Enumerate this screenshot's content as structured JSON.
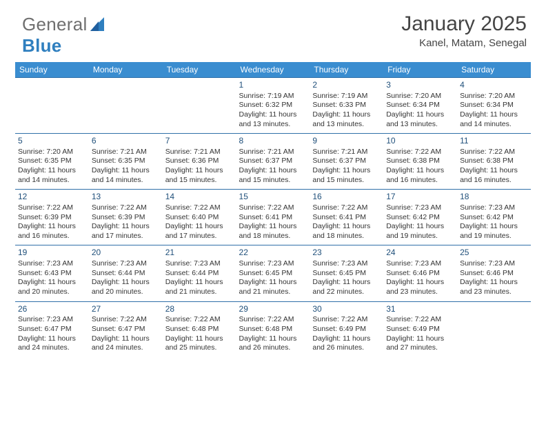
{
  "brand": {
    "word1": "General",
    "word2": "Blue"
  },
  "title": "January 2025",
  "location": "Kanel, Matam, Senegal",
  "colors": {
    "header_bg": "#3a8dd0",
    "header_text": "#ffffff",
    "row_border": "#2f6fa8",
    "daynum_color": "#1f4f7a",
    "body_text": "#333333",
    "logo_gray": "#6f6f6f",
    "logo_blue": "#2f7fbf"
  },
  "day_headers": [
    "Sunday",
    "Monday",
    "Tuesday",
    "Wednesday",
    "Thursday",
    "Friday",
    "Saturday"
  ],
  "weeks": [
    [
      {},
      {},
      {},
      {
        "n": "1",
        "sr": "7:19 AM",
        "ss": "6:32 PM",
        "d1": "Daylight: 11 hours",
        "d2": "and 13 minutes."
      },
      {
        "n": "2",
        "sr": "7:19 AM",
        "ss": "6:33 PM",
        "d1": "Daylight: 11 hours",
        "d2": "and 13 minutes."
      },
      {
        "n": "3",
        "sr": "7:20 AM",
        "ss": "6:34 PM",
        "d1": "Daylight: 11 hours",
        "d2": "and 13 minutes."
      },
      {
        "n": "4",
        "sr": "7:20 AM",
        "ss": "6:34 PM",
        "d1": "Daylight: 11 hours",
        "d2": "and 14 minutes."
      }
    ],
    [
      {
        "n": "5",
        "sr": "7:20 AM",
        "ss": "6:35 PM",
        "d1": "Daylight: 11 hours",
        "d2": "and 14 minutes."
      },
      {
        "n": "6",
        "sr": "7:21 AM",
        "ss": "6:35 PM",
        "d1": "Daylight: 11 hours",
        "d2": "and 14 minutes."
      },
      {
        "n": "7",
        "sr": "7:21 AM",
        "ss": "6:36 PM",
        "d1": "Daylight: 11 hours",
        "d2": "and 15 minutes."
      },
      {
        "n": "8",
        "sr": "7:21 AM",
        "ss": "6:37 PM",
        "d1": "Daylight: 11 hours",
        "d2": "and 15 minutes."
      },
      {
        "n": "9",
        "sr": "7:21 AM",
        "ss": "6:37 PM",
        "d1": "Daylight: 11 hours",
        "d2": "and 15 minutes."
      },
      {
        "n": "10",
        "sr": "7:22 AM",
        "ss": "6:38 PM",
        "d1": "Daylight: 11 hours",
        "d2": "and 16 minutes."
      },
      {
        "n": "11",
        "sr": "7:22 AM",
        "ss": "6:38 PM",
        "d1": "Daylight: 11 hours",
        "d2": "and 16 minutes."
      }
    ],
    [
      {
        "n": "12",
        "sr": "7:22 AM",
        "ss": "6:39 PM",
        "d1": "Daylight: 11 hours",
        "d2": "and 16 minutes."
      },
      {
        "n": "13",
        "sr": "7:22 AM",
        "ss": "6:39 PM",
        "d1": "Daylight: 11 hours",
        "d2": "and 17 minutes."
      },
      {
        "n": "14",
        "sr": "7:22 AM",
        "ss": "6:40 PM",
        "d1": "Daylight: 11 hours",
        "d2": "and 17 minutes."
      },
      {
        "n": "15",
        "sr": "7:22 AM",
        "ss": "6:41 PM",
        "d1": "Daylight: 11 hours",
        "d2": "and 18 minutes."
      },
      {
        "n": "16",
        "sr": "7:22 AM",
        "ss": "6:41 PM",
        "d1": "Daylight: 11 hours",
        "d2": "and 18 minutes."
      },
      {
        "n": "17",
        "sr": "7:23 AM",
        "ss": "6:42 PM",
        "d1": "Daylight: 11 hours",
        "d2": "and 19 minutes."
      },
      {
        "n": "18",
        "sr": "7:23 AM",
        "ss": "6:42 PM",
        "d1": "Daylight: 11 hours",
        "d2": "and 19 minutes."
      }
    ],
    [
      {
        "n": "19",
        "sr": "7:23 AM",
        "ss": "6:43 PM",
        "d1": "Daylight: 11 hours",
        "d2": "and 20 minutes."
      },
      {
        "n": "20",
        "sr": "7:23 AM",
        "ss": "6:44 PM",
        "d1": "Daylight: 11 hours",
        "d2": "and 20 minutes."
      },
      {
        "n": "21",
        "sr": "7:23 AM",
        "ss": "6:44 PM",
        "d1": "Daylight: 11 hours",
        "d2": "and 21 minutes."
      },
      {
        "n": "22",
        "sr": "7:23 AM",
        "ss": "6:45 PM",
        "d1": "Daylight: 11 hours",
        "d2": "and 21 minutes."
      },
      {
        "n": "23",
        "sr": "7:23 AM",
        "ss": "6:45 PM",
        "d1": "Daylight: 11 hours",
        "d2": "and 22 minutes."
      },
      {
        "n": "24",
        "sr": "7:23 AM",
        "ss": "6:46 PM",
        "d1": "Daylight: 11 hours",
        "d2": "and 23 minutes."
      },
      {
        "n": "25",
        "sr": "7:23 AM",
        "ss": "6:46 PM",
        "d1": "Daylight: 11 hours",
        "d2": "and 23 minutes."
      }
    ],
    [
      {
        "n": "26",
        "sr": "7:23 AM",
        "ss": "6:47 PM",
        "d1": "Daylight: 11 hours",
        "d2": "and 24 minutes."
      },
      {
        "n": "27",
        "sr": "7:22 AM",
        "ss": "6:47 PM",
        "d1": "Daylight: 11 hours",
        "d2": "and 24 minutes."
      },
      {
        "n": "28",
        "sr": "7:22 AM",
        "ss": "6:48 PM",
        "d1": "Daylight: 11 hours",
        "d2": "and 25 minutes."
      },
      {
        "n": "29",
        "sr": "7:22 AM",
        "ss": "6:48 PM",
        "d1": "Daylight: 11 hours",
        "d2": "and 26 minutes."
      },
      {
        "n": "30",
        "sr": "7:22 AM",
        "ss": "6:49 PM",
        "d1": "Daylight: 11 hours",
        "d2": "and 26 minutes."
      },
      {
        "n": "31",
        "sr": "7:22 AM",
        "ss": "6:49 PM",
        "d1": "Daylight: 11 hours",
        "d2": "and 27 minutes."
      },
      {}
    ]
  ]
}
